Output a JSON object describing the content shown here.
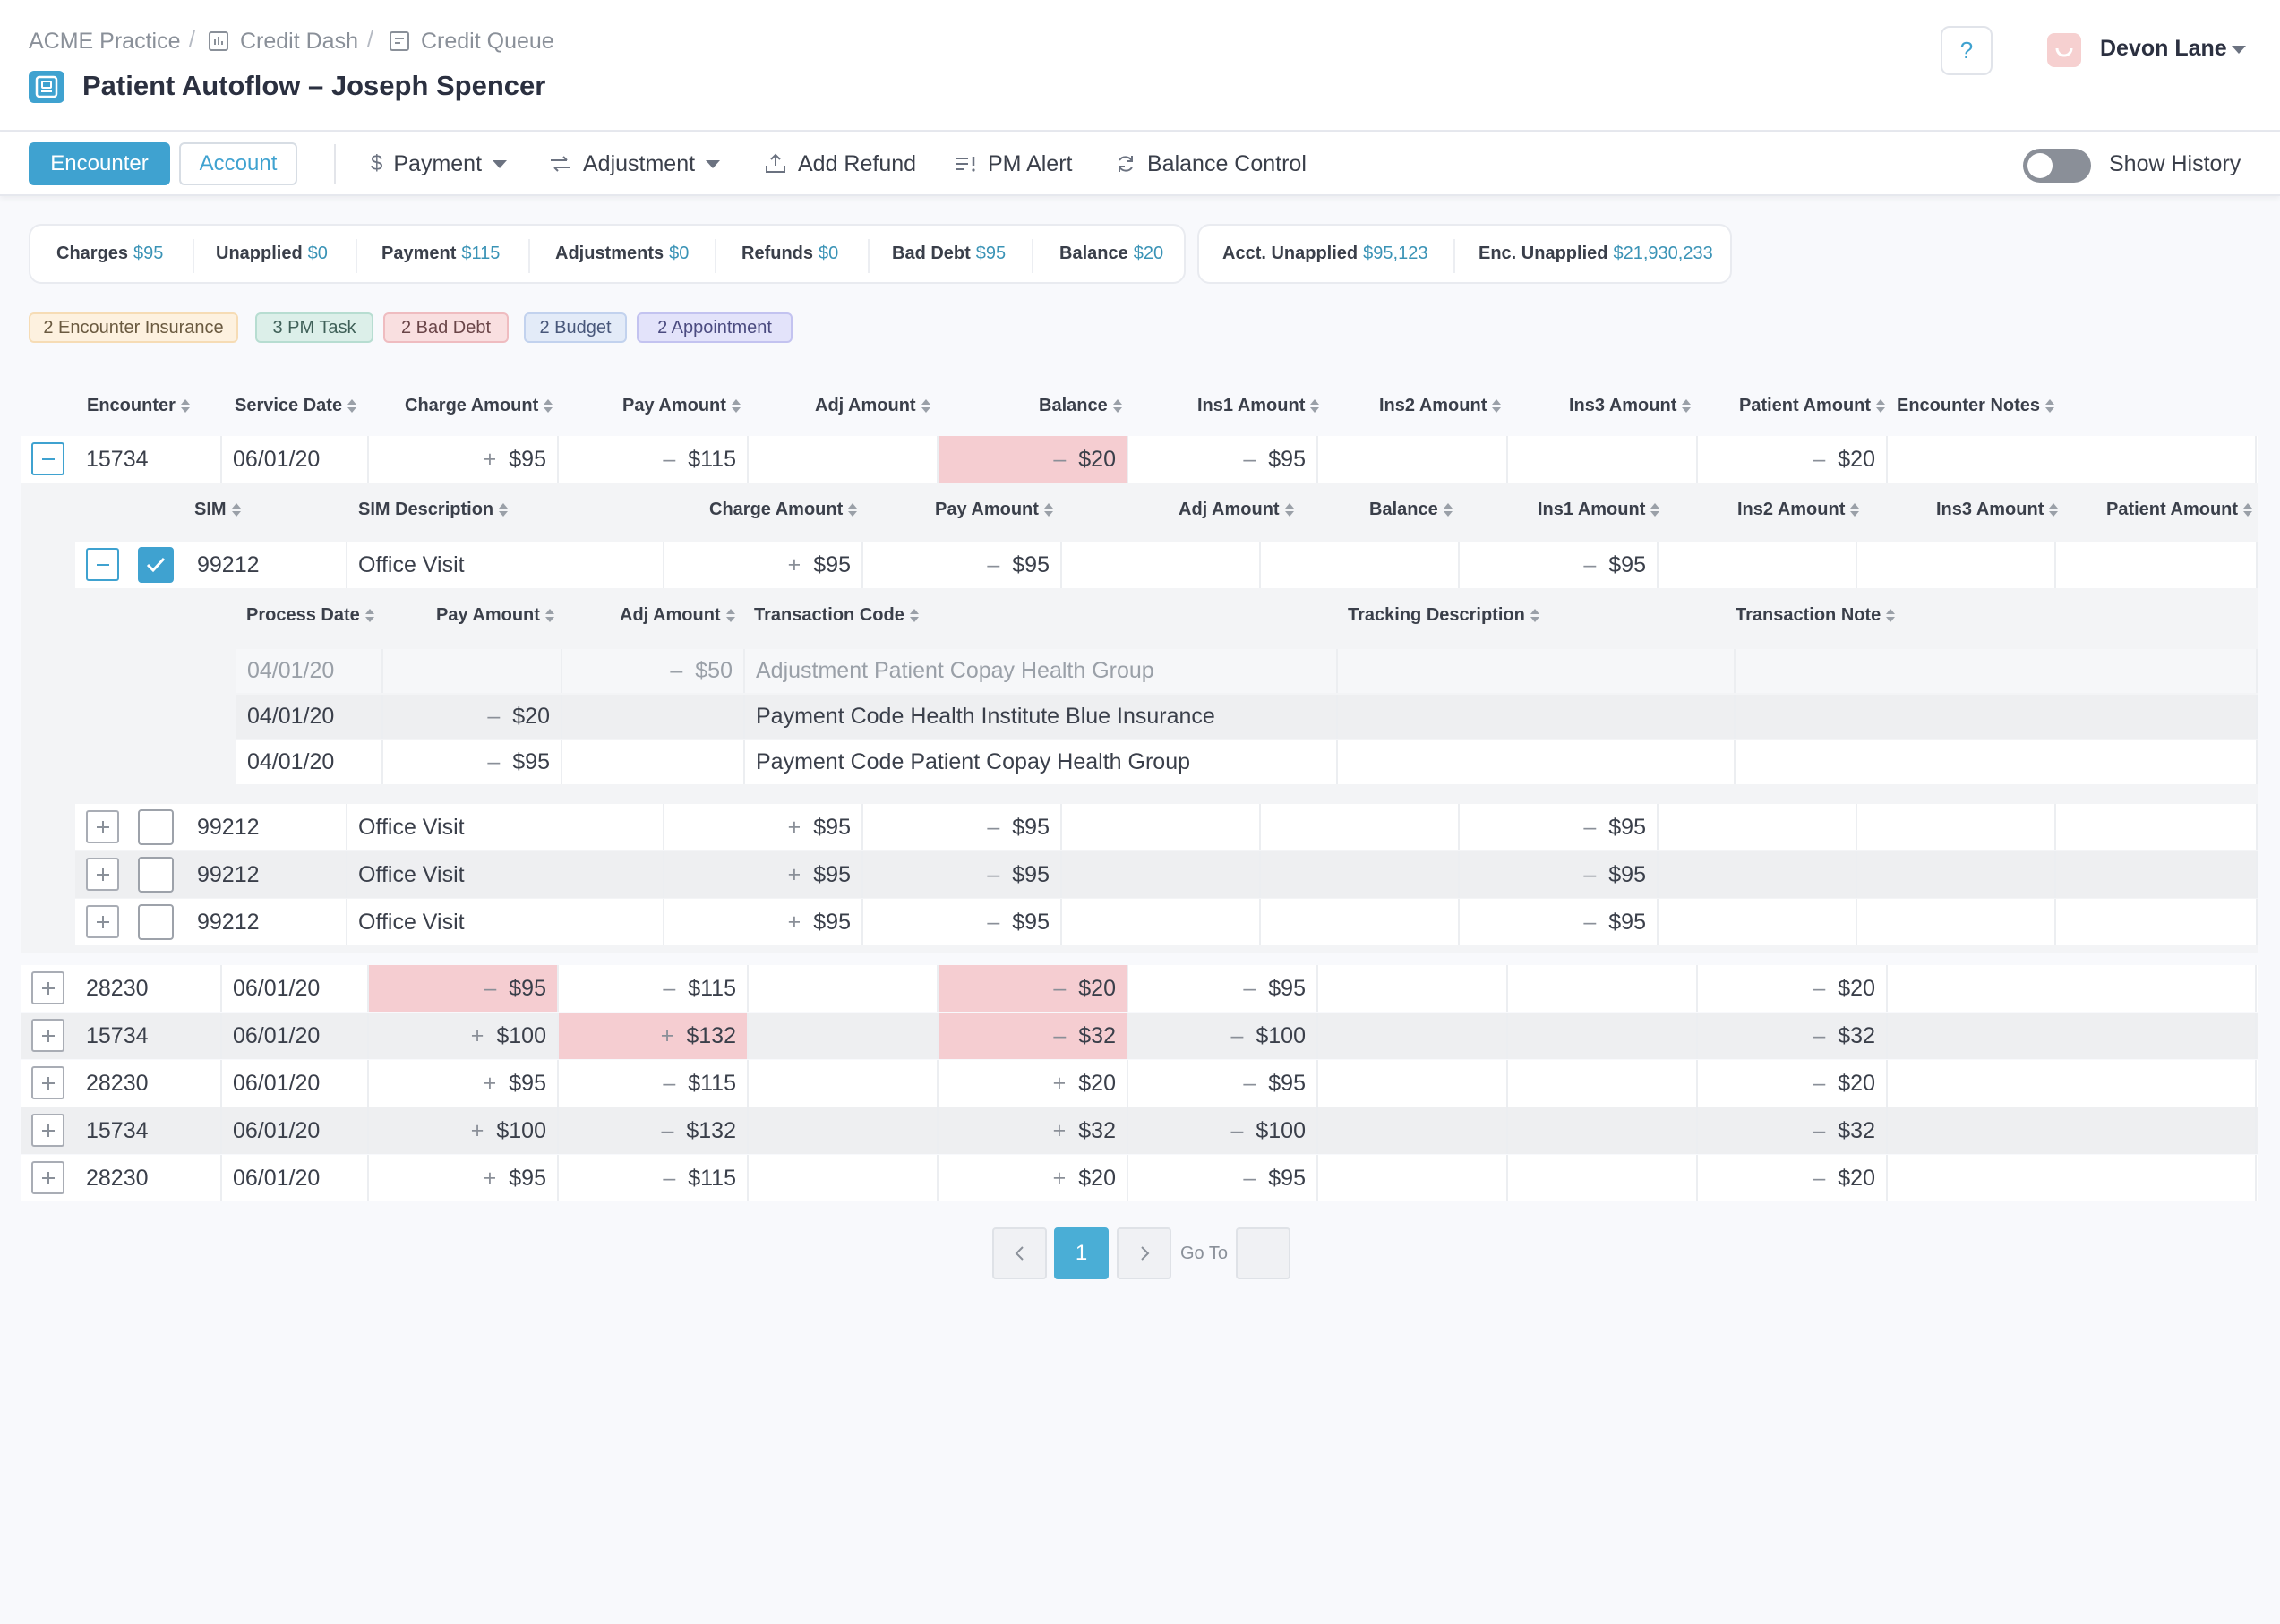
{
  "breadcrumb": {
    "items": [
      "ACME Practice",
      "Credit Dash",
      "Credit Queue"
    ],
    "separator": "/"
  },
  "page_title": "Patient Autoflow – Joseph Spencer",
  "header": {
    "help": "?",
    "user_name": "Devon Lane"
  },
  "toolbar": {
    "encounter": "Encounter",
    "account": "Account",
    "payment": "Payment",
    "adjustment": "Adjustment",
    "add_refund": "Add Refund",
    "pm_alert": "PM Alert",
    "balance_control": "Balance Control",
    "show_history": "Show History",
    "show_history_on": false
  },
  "summary": {
    "charges": {
      "label": "Charges",
      "value": "$95"
    },
    "unapplied": {
      "label": "Unapplied",
      "value": "$0"
    },
    "payment": {
      "label": "Payment",
      "value": "$115"
    },
    "adjustments": {
      "label": "Adjustments",
      "value": "$0"
    },
    "refunds": {
      "label": "Refunds",
      "value": "$0"
    },
    "bad_debt": {
      "label": "Bad Debt",
      "value": "$95"
    },
    "balance": {
      "label": "Balance",
      "value": "$20"
    },
    "acct_unapplied": {
      "label": "Acct. Unapplied",
      "value": "$95,123"
    },
    "enc_unapplied": {
      "label": "Enc. Unapplied",
      "value": "$21,930,233"
    }
  },
  "tags": [
    "2 Encounter Insurance",
    "3 PM Task",
    "2 Bad Debt",
    "2 Budget",
    "2 Appointment"
  ],
  "encounter_table": {
    "headers": [
      "Encounter",
      "Service Date",
      "Charge Amount",
      "Pay Amount",
      "Adj Amount",
      "Balance",
      "Ins1 Amount",
      "Ins2 Amount",
      "Ins3 Amount",
      "Patient Amount",
      "Encounter Notes"
    ],
    "expanded_row": {
      "encounter": "15734",
      "service_date": "06/01/20",
      "charge": "+ $95",
      "pay": "– $115",
      "adj": "",
      "balance": "– $20",
      "ins1": "– $95",
      "ins2": "",
      "ins3": "",
      "patient": "– $20",
      "notes": ""
    },
    "rows": [
      {
        "encounter": "28230",
        "service_date": "06/01/20",
        "charge": "– $95",
        "pay": "– $115",
        "adj": "",
        "balance": "– $20",
        "ins1": "– $95",
        "ins2": "",
        "ins3": "",
        "patient": "– $20",
        "notes": ""
      },
      {
        "encounter": "15734",
        "service_date": "06/01/20",
        "charge": "+ $100",
        "pay": "+ $132",
        "adj": "",
        "balance": "– $32",
        "ins1": "– $100",
        "ins2": "",
        "ins3": "",
        "patient": "– $32",
        "notes": ""
      },
      {
        "encounter": "28230",
        "service_date": "06/01/20",
        "charge": "+ $95",
        "pay": "– $115",
        "adj": "",
        "balance": "+ $20",
        "ins1": "– $95",
        "ins2": "",
        "ins3": "",
        "patient": "– $20",
        "notes": ""
      },
      {
        "encounter": "15734",
        "service_date": "06/01/20",
        "charge": "+ $100",
        "pay": "– $132",
        "adj": "",
        "balance": "+ $32",
        "ins1": "– $100",
        "ins2": "",
        "ins3": "",
        "patient": "– $32",
        "notes": ""
      },
      {
        "encounter": "28230",
        "service_date": "06/01/20",
        "charge": "+ $95",
        "pay": "– $115",
        "adj": "",
        "balance": "+ $20",
        "ins1": "– $95",
        "ins2": "",
        "ins3": "",
        "patient": "– $20",
        "notes": ""
      }
    ]
  },
  "sim_table": {
    "headers": [
      "SIM",
      "SIM Description",
      "Charge Amount",
      "Pay Amount",
      "Adj Amount",
      "Balance",
      "Ins1 Amount",
      "Ins2 Amount",
      "Ins3 Amount",
      "Patient Amount"
    ],
    "expanded_row": {
      "sim": "99212",
      "desc": "Office Visit",
      "charge": "+ $95",
      "pay": "– $95",
      "ins1": "– $95",
      "checked": true
    },
    "rows": [
      {
        "sim": "99212",
        "desc": "Office Visit",
        "charge": "+ $95",
        "pay": "– $95",
        "ins1": "– $95",
        "checked": false
      },
      {
        "sim": "99212",
        "desc": "Office Visit",
        "charge": "+ $95",
        "pay": "– $95",
        "ins1": "– $95",
        "checked": false
      },
      {
        "sim": "99212",
        "desc": "Office Visit",
        "charge": "+ $95",
        "pay": "– $95",
        "ins1": "– $95",
        "checked": false
      }
    ]
  },
  "transaction_table": {
    "headers": [
      "Process Date",
      "Pay Amount",
      "Adj Amount",
      "Transaction Code",
      "Tracking Description",
      "Transaction Note"
    ],
    "rows": [
      {
        "date": "04/01/20",
        "pay": "",
        "adj": "– $50",
        "code": "Adjustment Patient Copay Health Group",
        "tracking": "",
        "note": ""
      },
      {
        "date": "04/01/20",
        "pay": "– $20",
        "adj": "",
        "code": "Payment Code Health Institute Blue Insurance",
        "tracking": "",
        "note": ""
      },
      {
        "date": "04/01/20",
        "pay": "– $95",
        "adj": "",
        "code": "Payment Code Patient Copay Health Group",
        "tracking": "",
        "note": ""
      }
    ]
  },
  "pagination": {
    "current_page": "1",
    "goto_label": "Go To"
  }
}
